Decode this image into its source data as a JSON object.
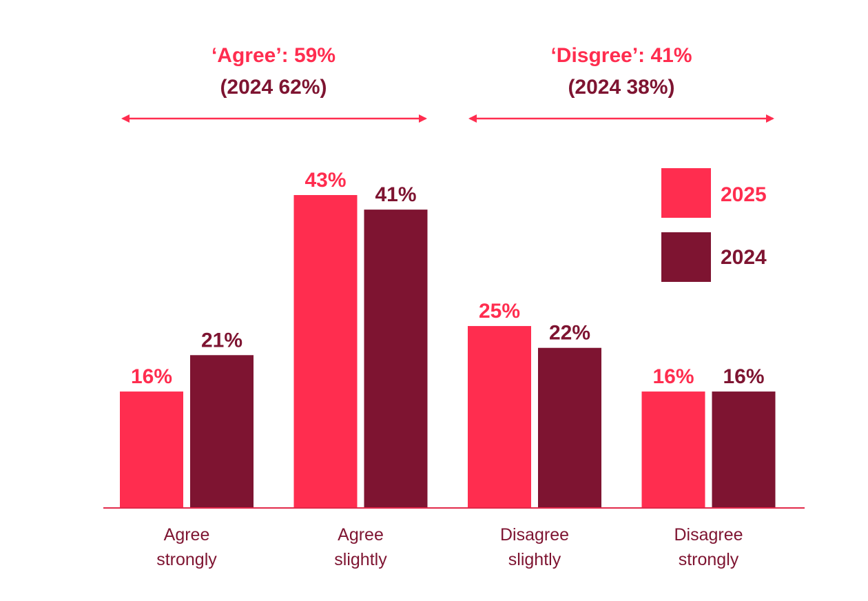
{
  "colors": {
    "s2025": "#ff2d4f",
    "s2024": "#7e1431",
    "axis": "#e2294a",
    "text_pink": "#ff2d4f",
    "text_dark": "#7e1431",
    "category_text": "#7e1431"
  },
  "summary": {
    "agree": {
      "headline": "‘Agree’: 59%",
      "prev": "(2024 62%)"
    },
    "disagree": {
      "headline": "‘Disgree’: 41%",
      "prev": "(2024 38%)"
    }
  },
  "chart_data": {
    "type": "bar",
    "categories": [
      [
        "Agree",
        "strongly"
      ],
      [
        "Agree",
        "slightly"
      ],
      [
        "Disagree",
        "slightly"
      ],
      [
        "Disagree",
        "strongly"
      ]
    ],
    "series": [
      {
        "name": "2025",
        "values": [
          16,
          43,
          25,
          16
        ],
        "labels": [
          "16%",
          "43%",
          "25%",
          "16%"
        ]
      },
      {
        "name": "2024",
        "values": [
          21,
          41,
          22,
          16
        ],
        "labels": [
          "21%",
          "41%",
          "22%",
          "16%"
        ]
      }
    ],
    "ylim": [
      0,
      43
    ],
    "grid": false,
    "legend": "top-right",
    "title": "",
    "xlabel": "",
    "ylabel": ""
  }
}
